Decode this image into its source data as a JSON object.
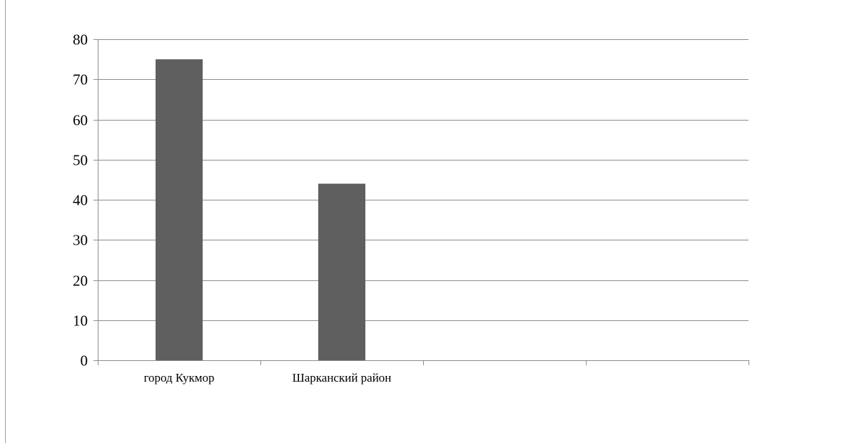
{
  "chart_data": {
    "type": "bar",
    "categories": [
      "город Кукмор",
      "Шарканский район",
      "",
      ""
    ],
    "values": [
      75,
      44,
      null,
      null
    ],
    "yticks": [
      0,
      10,
      20,
      30,
      40,
      50,
      60,
      70,
      80
    ],
    "ylim": [
      0,
      80
    ],
    "grid": true,
    "title": "",
    "xlabel": "",
    "ylabel": "",
    "colors": {
      "bar": "#5f5f5f",
      "grid": "#8c8c8c",
      "axis": "#8c8c8c",
      "text": "#000000"
    }
  }
}
